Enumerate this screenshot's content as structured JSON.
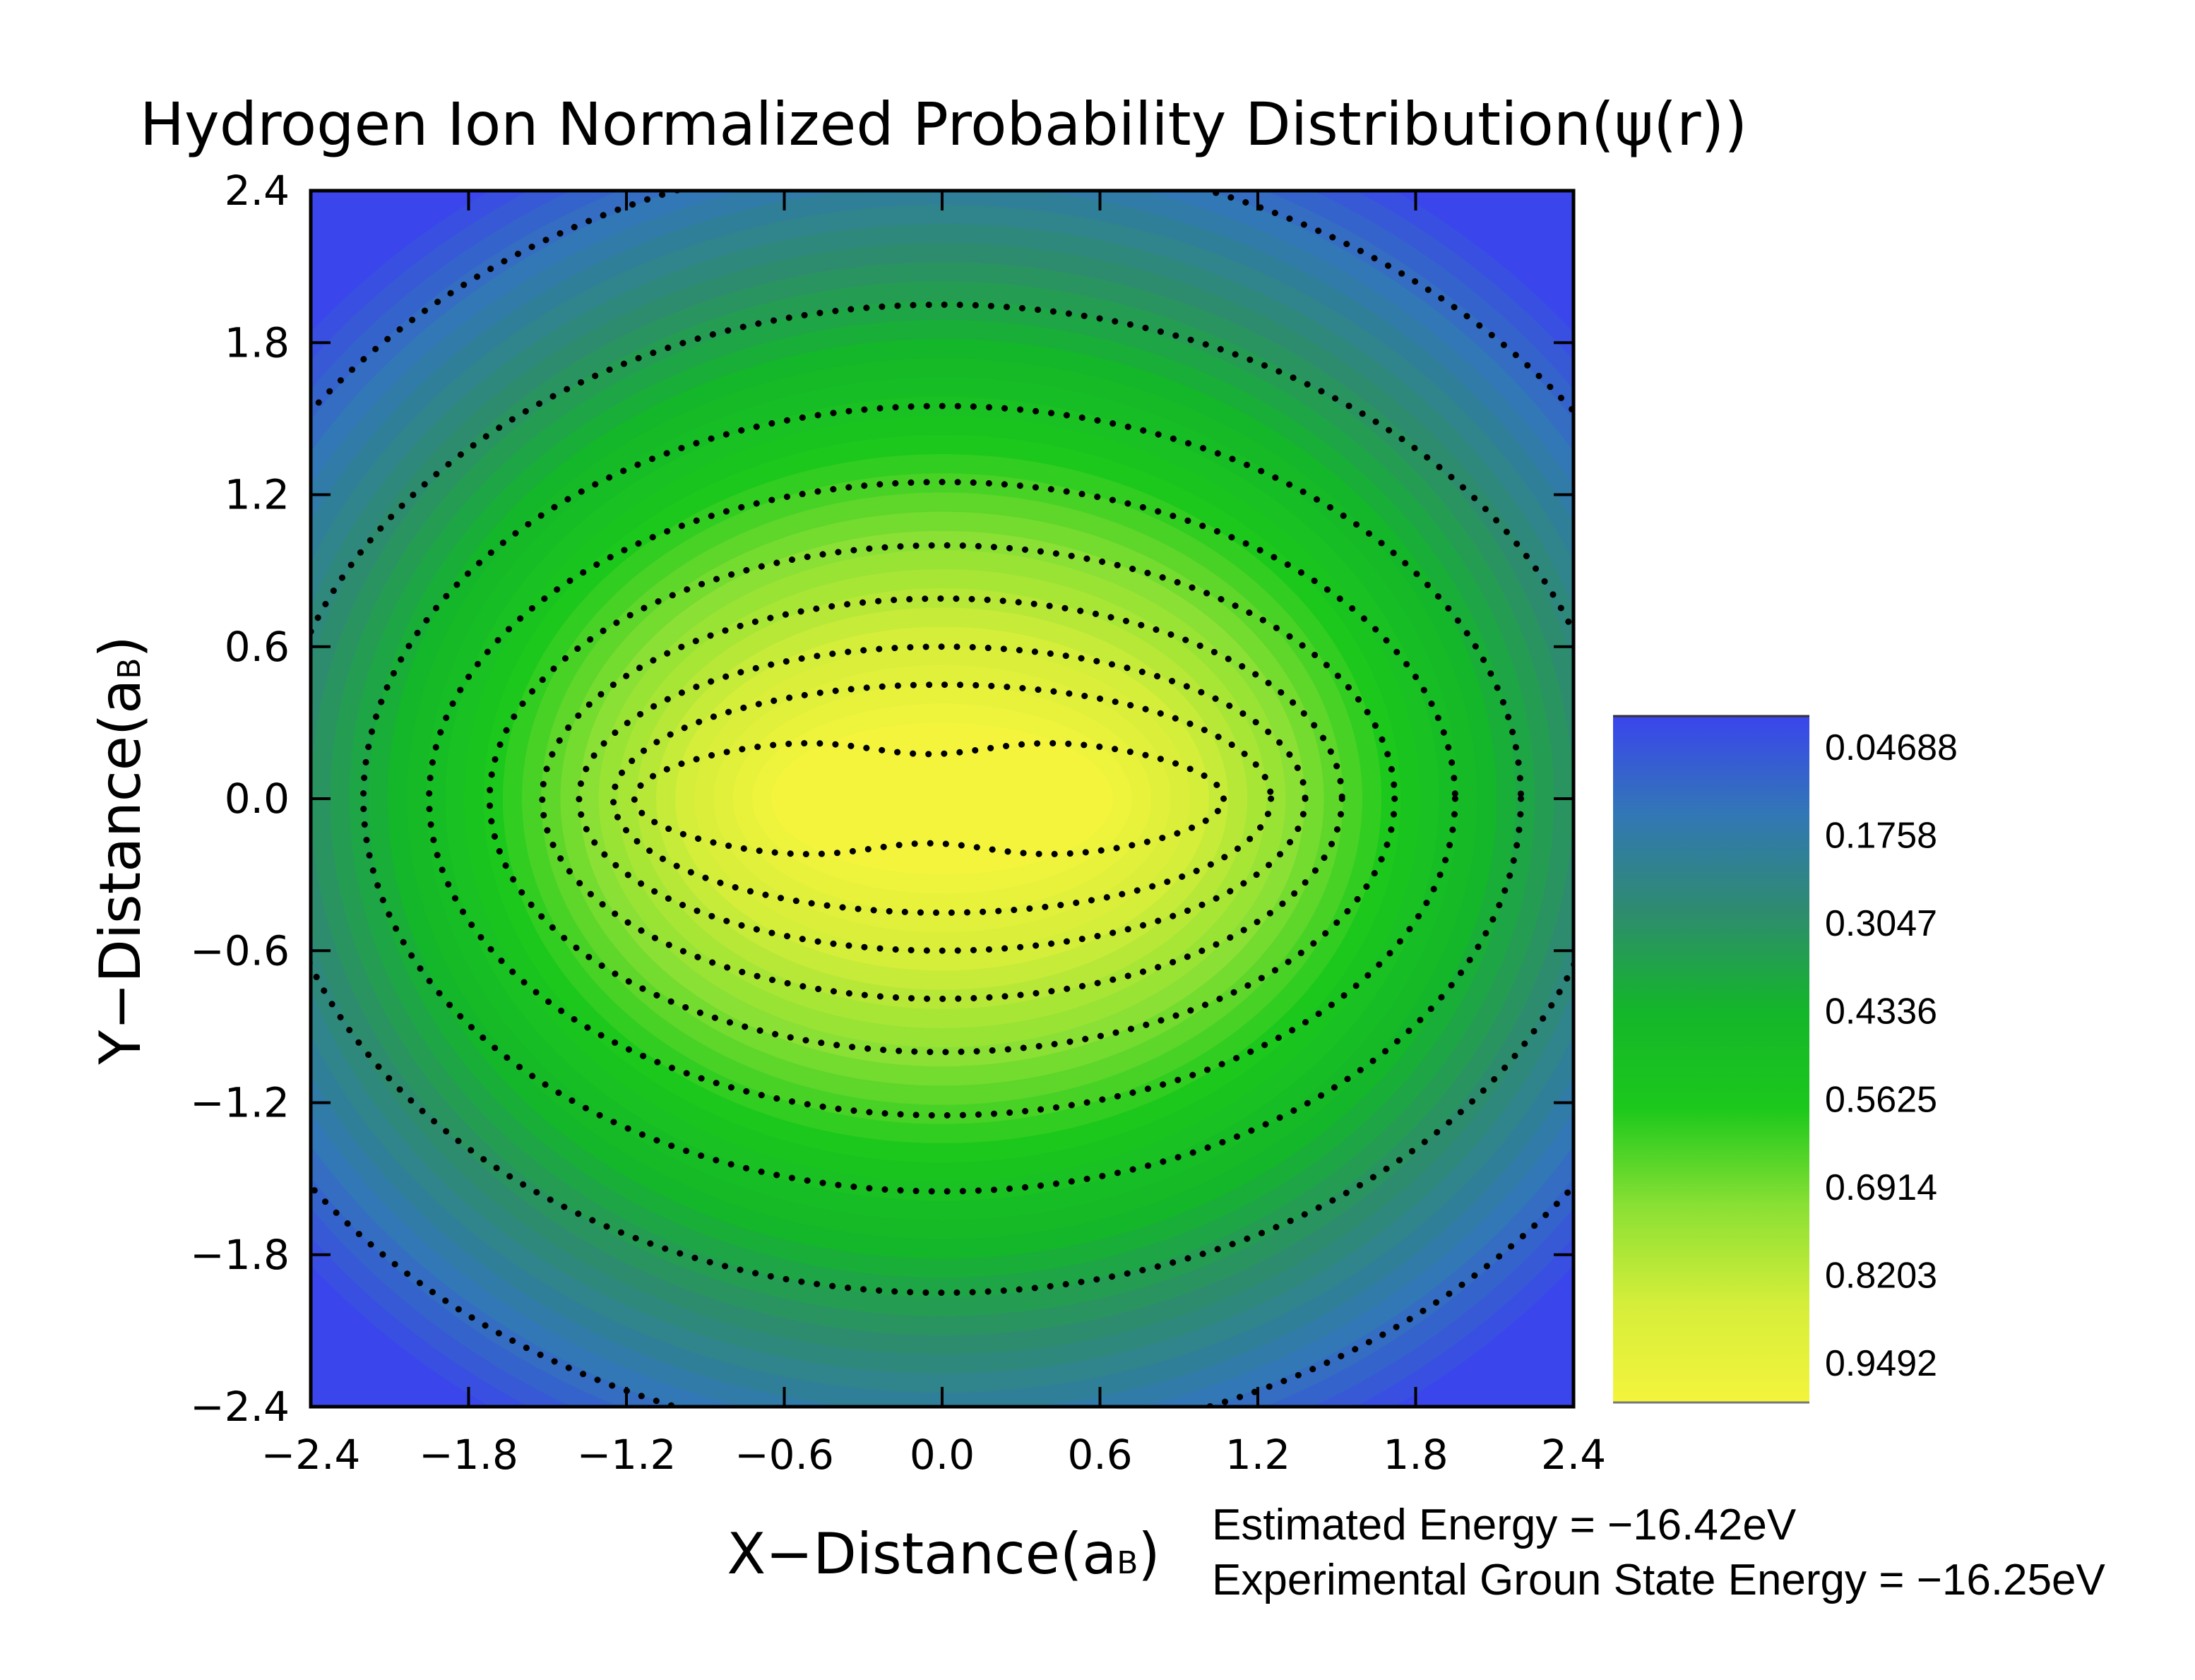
{
  "chart_data": {
    "type": "heatmap",
    "title": "Hydrogen Ion Normalized Probability Distribution(ψ(r))",
    "xlabel": "X−Distance(a",
    "xlabel_sub": "B",
    "xlabel_end": ")",
    "ylabel": "Y−Distance(a",
    "ylabel_sub": "B",
    "ylabel_end": ")",
    "xlim": [
      -2.4,
      2.4
    ],
    "ylim": [
      -2.4,
      2.4
    ],
    "xticks": [
      -2.4,
      -1.8,
      -1.2,
      -0.6,
      0.0,
      0.6,
      1.2,
      1.8,
      2.4
    ],
    "yticks": [
      -2.4,
      -1.8,
      -1.2,
      -0.6,
      0.0,
      0.6,
      1.2,
      1.8,
      2.4
    ],
    "xtick_labels": [
      "−2.4",
      "−1.8",
      "−1.2",
      "−0.6",
      "0.0",
      "0.6",
      "1.2",
      "1.8",
      "2.4"
    ],
    "ytick_labels": [
      "−2.4",
      "−1.8",
      "−1.2",
      "−0.6",
      "0.0",
      "0.6",
      "1.2",
      "1.8",
      "2.4"
    ],
    "contour_lines": "dotted",
    "contour_color": "#000000",
    "colorbar": {
      "levels": [
        0.04688,
        0.1758,
        0.3047,
        0.4336,
        0.5625,
        0.6914,
        0.8203,
        0.9492
      ],
      "labels": [
        "0.04688",
        "0.1758",
        "0.3047",
        "0.4336",
        "0.5625",
        "0.6914",
        "0.8203",
        "0.9492"
      ],
      "colors": [
        "#3a45ec",
        "#3277b6",
        "#2e8c6e",
        "#14b62a",
        "#1cc81c",
        "#8ae034",
        "#d5ee3a",
        "#f4f43c"
      ]
    },
    "annotations": [
      "Estimated Energy = −16.42eV",
      "Experimental Groun State Energy = −16.25eV"
    ]
  }
}
